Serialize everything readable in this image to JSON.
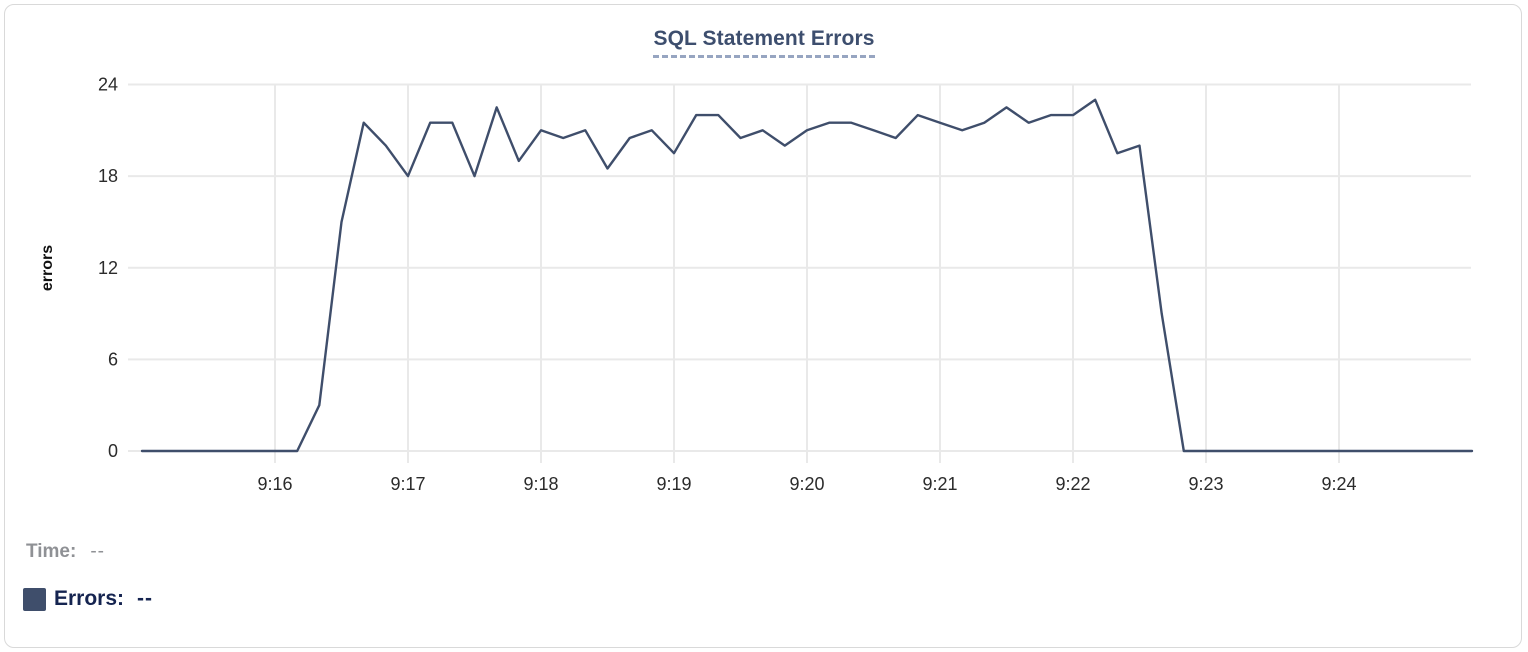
{
  "card": {
    "title": "SQL Statement Errors"
  },
  "chart_data": {
    "type": "line",
    "title": "SQL Statement Errors",
    "xlabel": "",
    "ylabel": "errors",
    "grid": true,
    "legend_position": "bottom-left",
    "x_axis": {
      "start": "9:15",
      "end": "9:25",
      "tick_labels": [
        "9:16",
        "9:17",
        "9:18",
        "9:19",
        "9:20",
        "9:21",
        "9:22",
        "9:23",
        "9:24"
      ],
      "tick_minutes": [
        1,
        2,
        3,
        4,
        5,
        6,
        7,
        8,
        9
      ]
    },
    "y_axis": {
      "min": 0,
      "max": 24,
      "ticks": [
        0,
        6,
        12,
        18,
        24
      ]
    },
    "series": [
      {
        "name": "Errors",
        "color": "#3f4e6b",
        "points": [
          [
            "9:15:00",
            0
          ],
          [
            "9:15:10",
            0
          ],
          [
            "9:15:20",
            0
          ],
          [
            "9:15:30",
            0
          ],
          [
            "9:15:40",
            0
          ],
          [
            "9:15:50",
            0
          ],
          [
            "9:16:00",
            0
          ],
          [
            "9:16:10",
            0
          ],
          [
            "9:16:20",
            3
          ],
          [
            "9:16:30",
            15
          ],
          [
            "9:16:40",
            21.5
          ],
          [
            "9:16:50",
            20
          ],
          [
            "9:17:00",
            18
          ],
          [
            "9:17:10",
            21.5
          ],
          [
            "9:17:20",
            21.5
          ],
          [
            "9:17:30",
            18
          ],
          [
            "9:17:40",
            22.5
          ],
          [
            "9:17:50",
            19
          ],
          [
            "9:18:00",
            21
          ],
          [
            "9:18:10",
            20.5
          ],
          [
            "9:18:20",
            21
          ],
          [
            "9:18:30",
            18.5
          ],
          [
            "9:18:40",
            20.5
          ],
          [
            "9:18:50",
            21
          ],
          [
            "9:19:00",
            19.5
          ],
          [
            "9:19:10",
            22
          ],
          [
            "9:19:20",
            22
          ],
          [
            "9:19:30",
            20.5
          ],
          [
            "9:19:40",
            21
          ],
          [
            "9:19:50",
            20
          ],
          [
            "9:20:00",
            21
          ],
          [
            "9:20:10",
            21.5
          ],
          [
            "9:20:20",
            21.5
          ],
          [
            "9:20:30",
            21
          ],
          [
            "9:20:40",
            20.5
          ],
          [
            "9:20:50",
            22
          ],
          [
            "9:21:00",
            21.5
          ],
          [
            "9:21:10",
            21
          ],
          [
            "9:21:20",
            21.5
          ],
          [
            "9:21:30",
            22.5
          ],
          [
            "9:21:40",
            21.5
          ],
          [
            "9:21:50",
            22
          ],
          [
            "9:22:00",
            22
          ],
          [
            "9:22:10",
            23
          ],
          [
            "9:22:20",
            19.5
          ],
          [
            "9:22:30",
            20
          ],
          [
            "9:22:40",
            9
          ],
          [
            "9:22:50",
            0
          ],
          [
            "9:23:00",
            0
          ],
          [
            "9:23:10",
            0
          ],
          [
            "9:23:20",
            0
          ],
          [
            "9:23:30",
            0
          ],
          [
            "9:23:40",
            0
          ],
          [
            "9:23:50",
            0
          ],
          [
            "9:24:00",
            0
          ],
          [
            "9:24:10",
            0
          ],
          [
            "9:24:20",
            0
          ],
          [
            "9:24:30",
            0
          ],
          [
            "9:24:40",
            0
          ],
          [
            "9:24:50",
            0
          ],
          [
            "9:25:00",
            0
          ]
        ]
      }
    ]
  },
  "tooltip": {
    "time_label": "Time:",
    "time_value": "--",
    "errors_label": "Errors:",
    "errors_value": "--"
  },
  "colors": {
    "accent": "#3f4e6b",
    "title": "#3d4e6e",
    "underline": "#97a5c1",
    "grid": "#e9e9e9",
    "tick_text": "#2b2b2b",
    "time_text": "#8f9195",
    "errors_text": "#152450",
    "card_border": "#d9d9d9"
  }
}
